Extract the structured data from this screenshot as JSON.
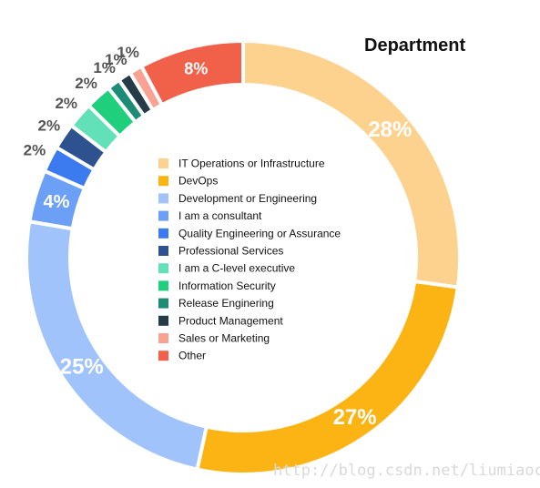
{
  "chart_data": {
    "type": "pie",
    "title": "Department",
    "categories": [
      "IT Operations or Infrastructure",
      "DevOps",
      "Development or Engineering",
      "I am a consultant",
      "Quality Engineering or Assurance",
      "Professional Services",
      "I am a C-level executive",
      "Information Security",
      "Release Enginering",
      "Product Management",
      "Sales or Marketing",
      "Other"
    ],
    "values": [
      28,
      27,
      25,
      4,
      2,
      2,
      2,
      2,
      1,
      1,
      1,
      8
    ],
    "labels": [
      "28%",
      "27%",
      "25%",
      "4%",
      "2%",
      "2%",
      "2%",
      "2%",
      "1%",
      "1%",
      "1%",
      "8%"
    ],
    "colors": [
      "#fdd28f",
      "#fbb414",
      "#9fc3fa",
      "#6c9ff6",
      "#3b7bef",
      "#2e5190",
      "#62e0b8",
      "#1fcf7b",
      "#1e8c75",
      "#253b48",
      "#f8a293",
      "#f1614a"
    ],
    "legend_position": "center",
    "donut": true,
    "watermark": "http://blog.csdn.net/liumiaocn"
  }
}
